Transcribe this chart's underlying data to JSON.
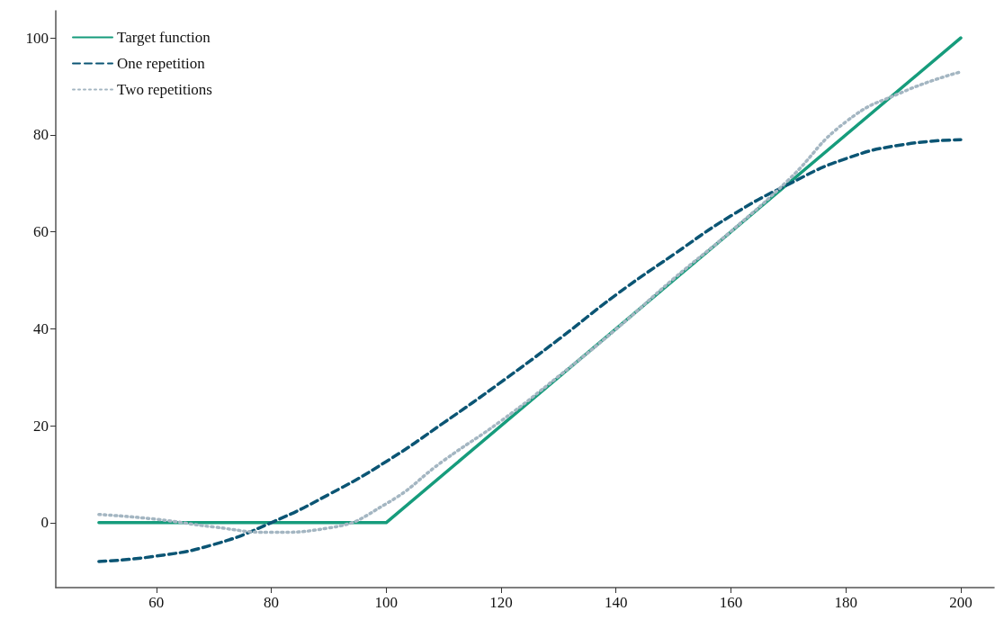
{
  "chart_data": {
    "type": "line",
    "x": [
      50,
      60,
      70,
      80,
      90,
      100,
      110,
      120,
      130,
      140,
      150,
      160,
      170,
      180,
      190,
      200
    ],
    "series": [
      {
        "name": "Target function",
        "color": "#169c7c",
        "line_style": "solid",
        "x": [
          50,
          100,
          200
        ],
        "values": [
          0,
          0,
          100
        ]
      },
      {
        "name": "One repetition",
        "color": "#0b5574",
        "line_style": "dashed",
        "values": [
          -8,
          -6.9,
          -4.5,
          0,
          5.8,
          12.6,
          20.6,
          29,
          37.8,
          47,
          55.3,
          63.3,
          69.8,
          75.1,
          78,
          79
        ]
      },
      {
        "name": "Two repetitions",
        "color": "#a4b6c2",
        "line_style": "dotted",
        "values": [
          1.7,
          0.7,
          -0.9,
          -2,
          -1.1,
          3.9,
          12.8,
          21,
          30.2,
          39.9,
          50.3,
          60.1,
          70.7,
          82.7,
          88.9,
          93
        ]
      }
    ],
    "xlim": [
      42.5,
      205.8
    ],
    "ylim": [
      -13.4,
      105.6
    ],
    "xticks": [
      60,
      80,
      100,
      120,
      140,
      160,
      180,
      200
    ],
    "yticks": [
      0,
      20,
      40,
      60,
      80,
      100
    ],
    "grid": false,
    "legend": "top left",
    "marker": "none"
  }
}
